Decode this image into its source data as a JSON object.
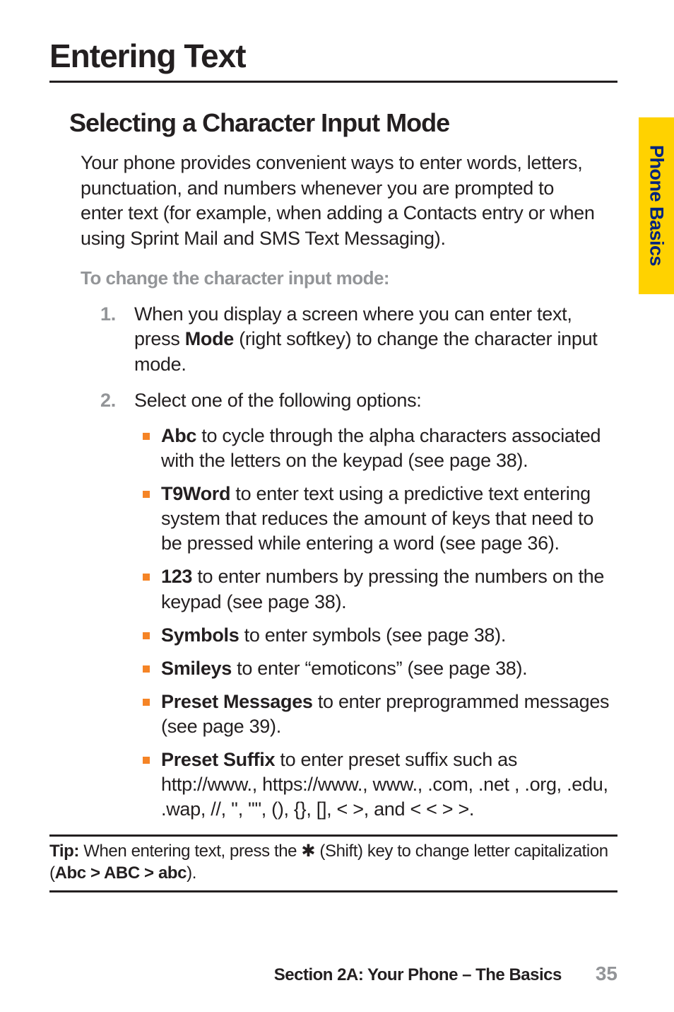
{
  "colors": {
    "text": "#231f20",
    "gray": "#939598",
    "bullet": "#f58426",
    "tab_bg": "#ffd200",
    "tab_text": "#00247d",
    "rule": "#231f20",
    "page_bg": "#ffffff"
  },
  "typography": {
    "title_pt": 46,
    "subtitle_pt": 36,
    "body_pt": 27,
    "instruction_pt": 26,
    "tip_pt": 24,
    "footer_section_pt": 24,
    "footer_page_pt": 28,
    "tab_pt": 27
  },
  "title": "Entering Text",
  "subtitle": "Selecting a Character Input Mode",
  "intro": "Your phone provides convenient ways to enter words, letters, punctuation, and numbers whenever you are prompted to enter text (for example, when adding a Contacts entry or when using Sprint Mail and SMS Text Messaging).",
  "instruction": "To change the character input mode:",
  "steps": [
    {
      "num": "1.",
      "before": "When you display a screen where you can enter text, press ",
      "bold": "Mode",
      "after": " (right softkey) to change the character input mode."
    },
    {
      "num": "2.",
      "text": "Select one of the following options:"
    }
  ],
  "bullets": [
    {
      "bold": "Abc",
      "rest": " to cycle through the alpha characters associated with the letters on the keypad (see page 38)."
    },
    {
      "bold": "T9Word",
      "rest": " to enter text using a predictive text entering system that reduces the amount of keys that need to be pressed while entering a word (see page 36)."
    },
    {
      "bold": "123",
      "rest": " to enter numbers by pressing the numbers on the keypad (see page 38)."
    },
    {
      "bold": "Symbols",
      "rest": " to enter symbols (see page 38)."
    },
    {
      "bold": "Smileys",
      "rest": " to enter “emoticons” (see page 38)."
    },
    {
      "bold": "Preset Messages",
      "rest": " to enter preprogrammed messages (see page 39)."
    },
    {
      "bold": "Preset Suffix",
      "rest": "  to enter preset suffix such as http://www., https://www., www., .com, .net , .org, .edu, .wap, //, '', \"\", (), {}, [], < >, and < < > >."
    }
  ],
  "tip": {
    "label": "Tip:",
    "before": " When entering text, press the ",
    "star": "✱",
    "mid": " (Shift) key to change letter capitalization (",
    "bold": "Abc > ABC > abc",
    "after": ")."
  },
  "side_tab": "Phone Basics",
  "footer": {
    "section": "Section 2A: Your Phone – The Basics",
    "page": "35"
  }
}
